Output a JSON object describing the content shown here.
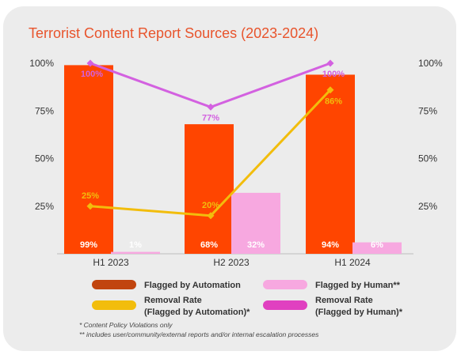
{
  "chart_data": {
    "type": "bar",
    "title": "Terrorist Content Report Sources (2023-2024)",
    "categories": [
      "H1 2023",
      "H2 2023",
      "H1 2024"
    ],
    "ylim": [
      0,
      100
    ],
    "yticks": [
      "25%",
      "50%",
      "75%",
      "100%"
    ],
    "series": [
      {
        "name": "Flagged by Automation",
        "kind": "bar",
        "color": "#ff4500",
        "values": [
          99,
          68,
          94
        ],
        "labels": [
          "99%",
          "68%",
          "94%"
        ]
      },
      {
        "name": "Flagged by Human**",
        "kind": "bar",
        "color": "#f7a8e0",
        "values": [
          1,
          32,
          6
        ],
        "labels": [
          "1%",
          "32%",
          "6%"
        ]
      },
      {
        "name": "Removal Rate (Flagged by Automation)*",
        "kind": "line",
        "color": "#f2bd0c",
        "values": [
          25,
          20,
          86
        ],
        "labels": [
          "25%",
          "20%",
          "86%"
        ]
      },
      {
        "name": "Removal Rate (Flagged by Human)*",
        "kind": "line",
        "color": "#d361e0",
        "values": [
          100,
          77,
          100
        ],
        "labels": [
          "100%",
          "77%",
          "100%"
        ]
      }
    ],
    "legend": [
      {
        "line1": "Flagged by Automation",
        "line2": "",
        "color": "#ff4500",
        "swatch_color": "#c1440e"
      },
      {
        "line1": "Flagged by Human**",
        "line2": "",
        "color": "#f7a8e0",
        "swatch_color": "#f7a8e0"
      },
      {
        "line1": "Removal Rate",
        "line2": "(Flagged by Automation)*",
        "color": "#f2bd0c",
        "swatch_color": "#f2bd0c"
      },
      {
        "line1": "Removal Rate",
        "line2": "(Flagged by Human)*",
        "color": "#d361e0",
        "swatch_color": "#e040c0"
      }
    ],
    "footnotes": [
      "* Content Policy Violations only",
      "** includes user/community/external reports and/or internal escalation processes"
    ],
    "grid": false,
    "legend_position": "bottom"
  }
}
